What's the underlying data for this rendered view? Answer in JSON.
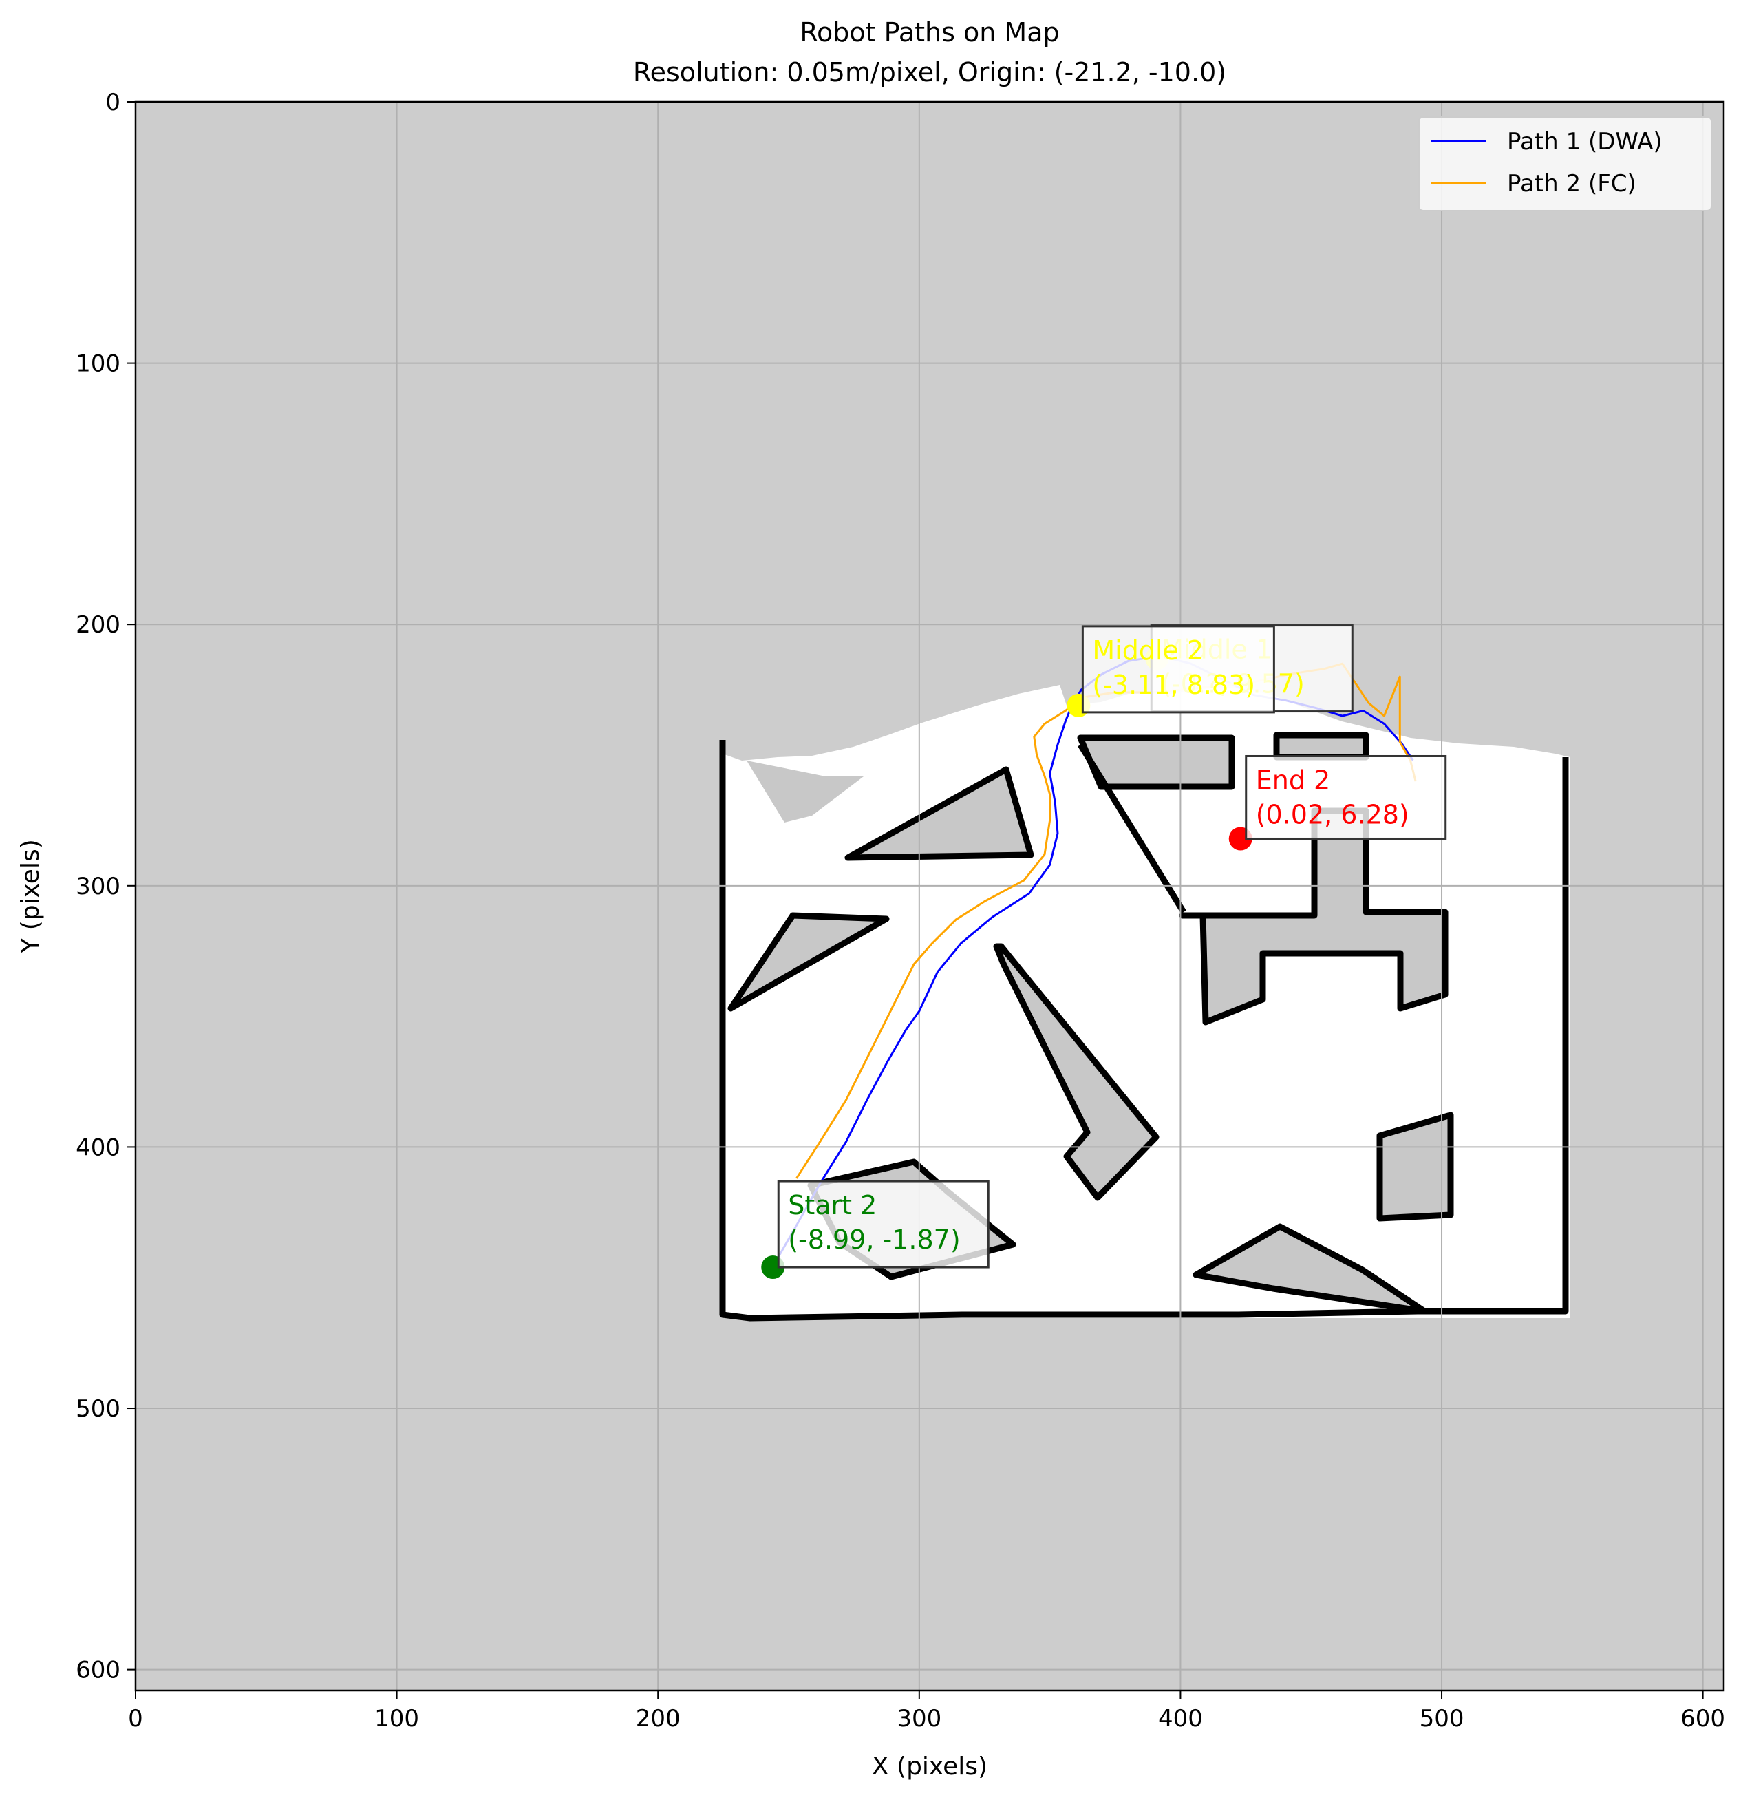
{
  "chart_data": {
    "type": "line",
    "title": "Robot Paths on Map",
    "subtitle": "Resolution: 0.05m/pixel, Origin: (-21.2, -10.0)",
    "xlabel": "X (pixels)",
    "ylabel": "Y (pixels)",
    "xlim": [
      0,
      608
    ],
    "ylim": [
      608,
      0
    ],
    "xticks": [
      "0",
      "100",
      "200",
      "300",
      "400",
      "500",
      "600"
    ],
    "yticks": [
      "0",
      "100",
      "200",
      "300",
      "400",
      "500",
      "600"
    ],
    "grid": true,
    "legend_position": "top-right",
    "background_color": "#cdcdcd",
    "free_space_color": "#ffffff",
    "wall_color": "#000000",
    "series": [
      {
        "name": "Path 1 (DWA)",
        "color": "#0000ff",
        "x": [
          245,
          253,
          262,
          272,
          280,
          288,
          295,
          300,
          307,
          316,
          328,
          342,
          350,
          353,
          352,
          350,
          353,
          356,
          358,
          362,
          370,
          380,
          392,
          404,
          416,
          428,
          440,
          452,
          462,
          470,
          478,
          485,
          489
        ],
        "y": [
          444,
          430,
          414,
          398,
          382,
          367,
          355,
          348,
          333,
          322,
          312,
          303,
          292,
          280,
          268,
          257,
          246,
          237,
          232,
          225,
          219,
          214,
          212,
          215,
          221,
          227,
          229,
          232,
          235,
          233,
          238,
          246,
          252
        ]
      },
      {
        "name": "Path 2 (FC)",
        "color": "#ffa500",
        "x": [
          253,
          262,
          272,
          280,
          288,
          293,
          298,
          305,
          314,
          325,
          340,
          348,
          350,
          350,
          348,
          345,
          344,
          348,
          356,
          362,
          375,
          390,
          410,
          428,
          442,
          455,
          462,
          468,
          472,
          478,
          484,
          484,
          488,
          490
        ],
        "y": [
          412,
          398,
          382,
          366,
          350,
          340,
          330,
          322,
          313,
          306,
          298,
          288,
          275,
          265,
          258,
          250,
          243,
          238,
          233,
          228,
          226,
          226,
          224,
          222,
          219,
          217,
          215,
          224,
          230,
          235,
          220,
          245,
          252,
          260
        ]
      }
    ],
    "markers": [
      {
        "label": "Start 2",
        "coords": "(-8.99, -1.87)",
        "x": 244,
        "y": 446,
        "color": "#008000"
      },
      {
        "label": "End 2",
        "coords": "(0.02, 6.28)",
        "x": 423,
        "y": 282,
        "color": "#ff0000"
      },
      {
        "label": "Middle 1",
        "coords": "(-0.?, 9.57)",
        "x": 391,
        "y": 213,
        "color": "#ffff00"
      },
      {
        "label": "Middle 2",
        "coords": "(-3.11, 8.83)",
        "x": 361,
        "y": 231,
        "color": "#ffff00"
      }
    ]
  }
}
